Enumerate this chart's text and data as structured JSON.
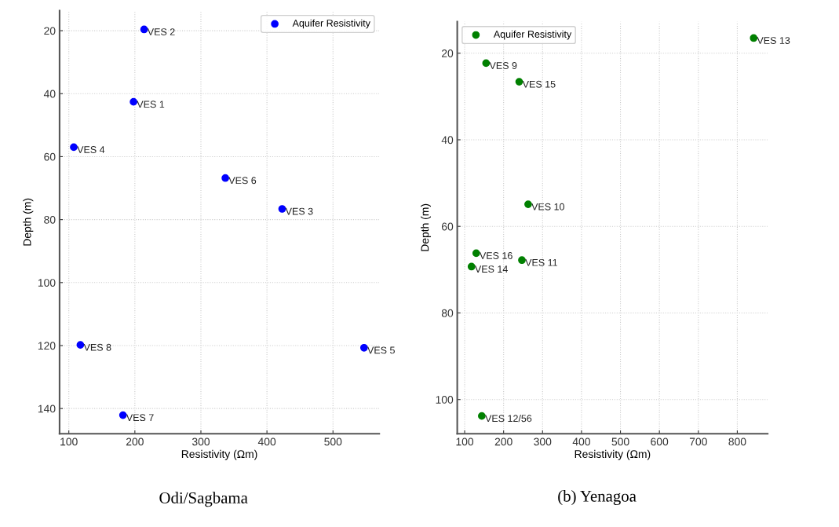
{
  "chart_data": [
    {
      "type": "scatter",
      "xlabel": "Resistivity (Ωm)",
      "ylabel": "Depth (m)",
      "xlim": [
        86,
        570
      ],
      "ylim": [
        148,
        13.6
      ],
      "xticks": [
        100,
        200,
        300,
        400,
        500
      ],
      "yticks": [
        20,
        40,
        60,
        80,
        100,
        120,
        140
      ],
      "grid": true,
      "legend": "top right",
      "marker": "circle",
      "series": [
        {
          "name": "Aquifer Resistivity",
          "color": "#0000ff",
          "x": [
            198,
            214,
            423,
            107.5,
            547,
            337,
            182,
            117.5
          ],
          "values": [
            42.6,
            19.6,
            76.6,
            57,
            120.7,
            66.8,
            142.1,
            119.8
          ]
        }
      ],
      "annotations": [
        {
          "text": "VES 1",
          "x": 198,
          "y": 42.6
        },
        {
          "text": "VES 2",
          "x": 214,
          "y": 19.6
        },
        {
          "text": "VES 3",
          "x": 423,
          "y": 76.6
        },
        {
          "text": "VES 4",
          "x": 107.5,
          "y": 57
        },
        {
          "text": "VES 5",
          "x": 547,
          "y": 120.7
        },
        {
          "text": "VES 6",
          "x": 337,
          "y": 66.8
        },
        {
          "text": "VES 7",
          "x": 182,
          "y": 142.1
        },
        {
          "text": "VES 8",
          "x": 117.5,
          "y": 119.8
        },
        "Odi/Sagbama"
      ]
    },
    {
      "type": "scatter",
      "xlabel": "Resistivity (Ωm)",
      "ylabel": "Depth (m)",
      "xlim": [
        81,
        878
      ],
      "ylim": [
        107.9,
        12.7
      ],
      "xticks": [
        100,
        200,
        300,
        400,
        500,
        600,
        700,
        800
      ],
      "yticks": [
        20,
        40,
        60,
        80,
        100
      ],
      "grid": true,
      "legend": "top left",
      "marker": "circle",
      "series": [
        {
          "name": "Aquifer Resistivity",
          "color": "#008000",
          "x": [
            155,
            263,
            247,
            144,
            842,
            117.6,
            240,
            129.7
          ],
          "values": [
            22.3,
            54.9,
            67.8,
            103.8,
            16.5,
            69.3,
            26.6,
            66.2
          ]
        }
      ],
      "annotations": [
        {
          "text": "VES 9",
          "x": 155,
          "y": 22.3
        },
        {
          "text": "VES 10",
          "x": 263,
          "y": 54.9
        },
        {
          "text": "VES 11",
          "x": 247,
          "y": 67.8
        },
        {
          "text": "VES 12/56",
          "x": 144,
          "y": 103.8
        },
        {
          "text": "VES 13",
          "x": 842,
          "y": 16.5
        },
        {
          "text": "VES 14",
          "x": 117.6,
          "y": 69.3
        },
        {
          "text": "VES 15",
          "x": 240,
          "y": 26.6
        },
        {
          "text": "VES 16",
          "x": 129.7,
          "y": 66.2
        },
        "(b) Yenagoa"
      ]
    }
  ]
}
